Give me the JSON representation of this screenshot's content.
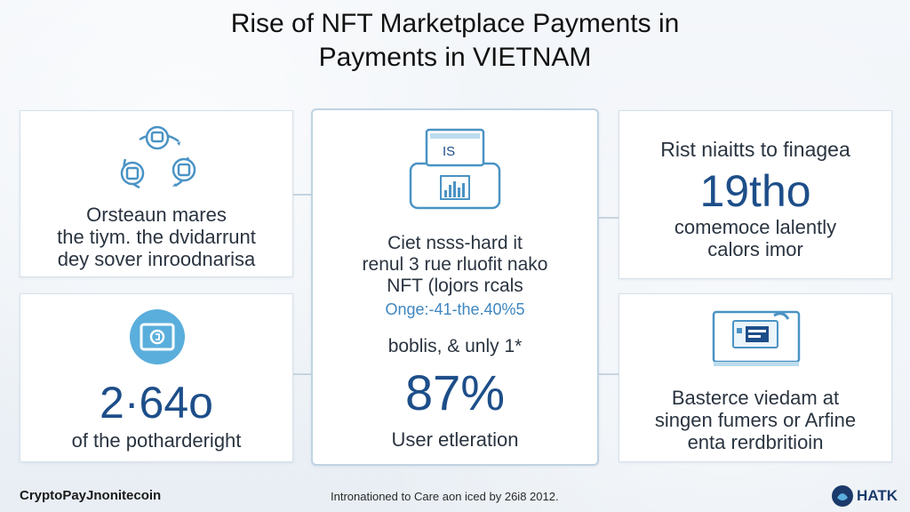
{
  "title": {
    "line1": "Rise of NFT Marketplace Payments in",
    "line2": "Payments in VIETNAM"
  },
  "colors": {
    "accent": "#1d4e89",
    "icon_stroke": "#4a93c4",
    "icon_fill": "#4aa3d4",
    "card_border": "#d6e1ea"
  },
  "top_left": {
    "icon": "network-cycle-icon",
    "text_lines": [
      "Orsteaun mares",
      "the tiym. the dvidarrunt",
      "dey sover inroodnarisa"
    ]
  },
  "bottom_left": {
    "icon": "coin-screen-icon",
    "stat": "2·64o",
    "caption": "of the potharderight"
  },
  "center": {
    "icon": "monitor-chart-icon",
    "icon_label": "IS",
    "text_lines": [
      "Ciet nsss-hard it",
      "renul 3 rue rluofit nako",
      "NFT (lojors rcals"
    ],
    "highlight": "Onge:-41-the.40%5",
    "subtext": "boblis, & unly 1*",
    "stat": "87%",
    "caption": "User etleration"
  },
  "top_right": {
    "text_top": "Rist niaitts to finagea",
    "stat": "19tho",
    "text_lines": [
      "comemoce lalently",
      "calors imor"
    ]
  },
  "bottom_right": {
    "icon": "desktop-card-icon",
    "text_lines": [
      "Basterce viedam at",
      "singen fumers or Arfine",
      "enta rerdbritioin"
    ]
  },
  "footer": {
    "left": "CryptoPayJnonitecoin",
    "center": "Intronationed to Care aon iced by 26i8 2012.",
    "brand": "HATK",
    "brand_icon": "brand-logo-icon"
  }
}
